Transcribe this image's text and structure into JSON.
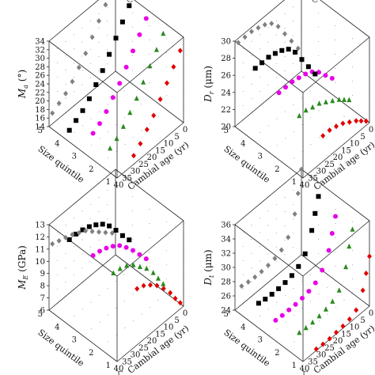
{
  "header_fragments": [
    "C",
    "C"
  ],
  "footer_fragments": [
    "Γ",
    "Γ"
  ],
  "colors": {
    "q1": "#e00000",
    "q2": "#2a8a1e",
    "q3": "#e800e8",
    "q4": "#000000",
    "q5": "#808080",
    "axis": "#222222",
    "grid_dots": "#777777"
  },
  "chart_data": [
    {
      "type": "scatter3d",
      "ylabel_main": "M",
      "ylabel_sub": "a",
      "ylabel_unit": "(°)",
      "xlabel": "Size quintile",
      "zlabel": "Cambial age (yr)",
      "size_ticks": [
        "1",
        "2",
        "3",
        "4",
        "5"
      ],
      "age_ticks": [
        "40",
        "35",
        "30",
        "25",
        "20",
        "15",
        "10",
        "5",
        "0"
      ],
      "v_ticks": [
        "14",
        "16",
        "18",
        "20",
        "22",
        "24",
        "26",
        "28",
        "30",
        "32",
        "34"
      ],
      "vlim": [
        14,
        34
      ],
      "markers": [
        "diamond",
        "triangle",
        "circle",
        "square",
        "diamond"
      ],
      "series": [
        {
          "quintile": 1,
          "age": [
            2,
            6,
            10,
            14,
            18,
            22,
            26,
            30
          ],
          "values": [
            31.5,
            29,
            26.5,
            24,
            21.5,
            19.5,
            17.5,
            16
          ]
        },
        {
          "quintile": 2,
          "age": [
            2,
            6,
            10,
            14,
            18,
            22,
            26,
            30,
            34
          ],
          "values": [
            32.5,
            30,
            27.5,
            25,
            22.5,
            20.5,
            18.5,
            17,
            16
          ]
        },
        {
          "quintile": 3,
          "age": [
            2,
            6,
            10,
            14,
            18,
            22,
            26,
            30,
            34
          ],
          "values": [
            33,
            30.5,
            28,
            25.5,
            23,
            21,
            19,
            17.5,
            16.5
          ]
        },
        {
          "quintile": 4,
          "age": [
            2,
            6,
            10,
            14,
            18,
            22,
            26,
            30,
            34,
            38
          ],
          "values": [
            33,
            30.5,
            28,
            25.5,
            23,
            21,
            19,
            17.5,
            16.5,
            15.5
          ]
        },
        {
          "quintile": 5,
          "age": [
            2,
            6,
            10,
            14,
            18,
            22,
            26,
            30,
            34,
            38
          ],
          "values": [
            34,
            31.5,
            29,
            26.5,
            24,
            22,
            20,
            18.5,
            17.5,
            16.5
          ]
        }
      ]
    },
    {
      "type": "scatter3d",
      "ylabel_main": "D",
      "ylabel_sub": "r",
      "ylabel_unit": "(μm)",
      "xlabel": "Size quintile",
      "zlabel": "Cambial age (yr)",
      "size_ticks": [
        "1",
        "2",
        "3",
        "4",
        "5"
      ],
      "age_ticks": [
        "40",
        "35",
        "30",
        "25",
        "20",
        "15",
        "10",
        "5",
        "0"
      ],
      "v_ticks": [
        "20",
        "22",
        "24",
        "26",
        "28",
        "30"
      ],
      "vlim": [
        20,
        30
      ],
      "markers": [
        "diamond",
        "triangle",
        "circle",
        "square",
        "diamond"
      ],
      "series": [
        {
          "quintile": 1,
          "age": [
            2,
            5,
            8,
            12,
            16,
            20,
            24,
            28
          ],
          "values": [
            20.5,
            21,
            21.5,
            22,
            22.5,
            22.8,
            23,
            23
          ]
        },
        {
          "quintile": 2,
          "age": [
            2,
            5,
            8,
            12,
            16,
            20,
            24,
            28,
            32
          ],
          "values": [
            21.5,
            22,
            22.5,
            23,
            23.5,
            24,
            24.2,
            24.5,
            24.5
          ]
        },
        {
          "quintile": 3,
          "age": [
            2,
            6,
            10,
            14,
            18,
            22,
            26,
            30,
            34
          ],
          "values": [
            22.5,
            23.5,
            24.5,
            25.2,
            25.6,
            25.8,
            26,
            26,
            26
          ]
        },
        {
          "quintile": 4,
          "age": [
            2,
            6,
            10,
            14,
            18,
            22,
            26,
            30,
            34,
            38
          ],
          "values": [
            21.5,
            23,
            24.5,
            26,
            27,
            27.5,
            27.8,
            28,
            28,
            28
          ]
        },
        {
          "quintile": 5,
          "age": [
            2,
            6,
            10,
            14,
            18,
            22,
            26,
            30,
            34,
            38
          ],
          "values": [
            23,
            24.5,
            26,
            27.5,
            28.5,
            29,
            29.3,
            29.5,
            29.5,
            29.5
          ]
        }
      ]
    },
    {
      "type": "scatter3d",
      "ylabel_main": "M",
      "ylabel_sub": "E",
      "ylabel_unit": "(GPa)",
      "xlabel": "Size quintile",
      "zlabel": "Cambial age (yr)",
      "size_ticks": [
        "1",
        "2",
        "3",
        "4",
        "5"
      ],
      "age_ticks": [
        "40",
        "35",
        "30",
        "25",
        "20",
        "15",
        "10",
        "5",
        "0"
      ],
      "v_ticks": [
        "6",
        "7",
        "8",
        "9",
        "10",
        "11",
        "12",
        "13"
      ],
      "vlim": [
        6,
        13
      ],
      "markers": [
        "diamond",
        "triangle",
        "circle",
        "square",
        "diamond"
      ],
      "series": [
        {
          "quintile": 1,
          "age": [
            2,
            5,
            8,
            12,
            16,
            20,
            24,
            28
          ],
          "values": [
            6.5,
            7.2,
            8,
            8.8,
            9.5,
            10,
            10.4,
            10.6
          ]
        },
        {
          "quintile": 2,
          "age": [
            2,
            5,
            8,
            12,
            16,
            20,
            24,
            28,
            32
          ],
          "values": [
            7,
            7.8,
            8.6,
            9.4,
            10,
            10.6,
            11,
            11.2,
            11.3
          ]
        },
        {
          "quintile": 3,
          "age": [
            2,
            6,
            10,
            14,
            18,
            22,
            26,
            30,
            34
          ],
          "values": [
            8,
            8.8,
            9.6,
            10.3,
            10.9,
            11.3,
            11.6,
            11.8,
            11.9
          ]
        },
        {
          "quintile": 4,
          "age": [
            2,
            6,
            10,
            14,
            18,
            22,
            26,
            30,
            34,
            38
          ],
          "values": [
            8.5,
            9.3,
            10.2,
            11,
            11.6,
            12,
            12.3,
            12.5,
            12.6,
            12.6
          ]
        },
        {
          "quintile": 5,
          "age": [
            2,
            6,
            10,
            14,
            18,
            22,
            26,
            30,
            34,
            38
          ],
          "values": [
            8,
            8.5,
            9,
            9.5,
            10,
            10.3,
            10.6,
            10.8,
            11,
            11.2
          ]
        }
      ]
    },
    {
      "type": "scatter3d",
      "ylabel_main": "D",
      "ylabel_sub": "t",
      "ylabel_unit": "(μm)",
      "xlabel": "Size quintile",
      "zlabel": "Cambial age (yr)",
      "size_ticks": [
        "1",
        "2",
        "3",
        "4",
        "5"
      ],
      "age_ticks": [
        "40",
        "35",
        "30",
        "25",
        "20",
        "15",
        "10",
        "5",
        "0"
      ],
      "v_ticks": [
        "24",
        "26",
        "28",
        "30",
        "32",
        "34",
        "36"
      ],
      "vlim": [
        24,
        36
      ],
      "markers": [
        "diamond",
        "triangle",
        "circle",
        "square",
        "diamond"
      ],
      "series": [
        {
          "quintile": 1,
          "age": [
            0,
            2,
            4,
            8,
            12,
            16,
            20,
            24,
            28,
            32
          ],
          "values": [
            31,
            29,
            27,
            25,
            24.5,
            24.3,
            24.2,
            24.1,
            24.1,
            24.2
          ]
        },
        {
          "quintile": 2,
          "age": [
            0,
            2,
            4,
            8,
            12,
            16,
            20,
            24,
            28,
            32
          ],
          "values": [
            33,
            31,
            28.5,
            26,
            25.2,
            24.9,
            24.7,
            24.6,
            24.6,
            24.7
          ]
        },
        {
          "quintile": 3,
          "age": [
            0,
            2,
            4,
            8,
            12,
            16,
            20,
            24,
            28,
            32,
            36
          ],
          "values": [
            33,
            31,
            29,
            27,
            26,
            25.6,
            25.4,
            25.3,
            25.3,
            25.3,
            25.4
          ]
        },
        {
          "quintile": 4,
          "age": [
            0,
            2,
            4,
            8,
            12,
            16,
            20,
            24,
            28,
            32,
            36
          ],
          "values": [
            34,
            32,
            30,
            27.5,
            26.5,
            26,
            25.8,
            25.7,
            25.7,
            25.8,
            26
          ]
        },
        {
          "quintile": 5,
          "age": [
            0,
            2,
            4,
            8,
            12,
            16,
            20,
            24,
            28,
            32,
            36
          ],
          "values": [
            36,
            33,
            30.5,
            28,
            27,
            26.6,
            26.4,
            26.3,
            26.3,
            26.4,
            26.6
          ]
        }
      ]
    }
  ]
}
